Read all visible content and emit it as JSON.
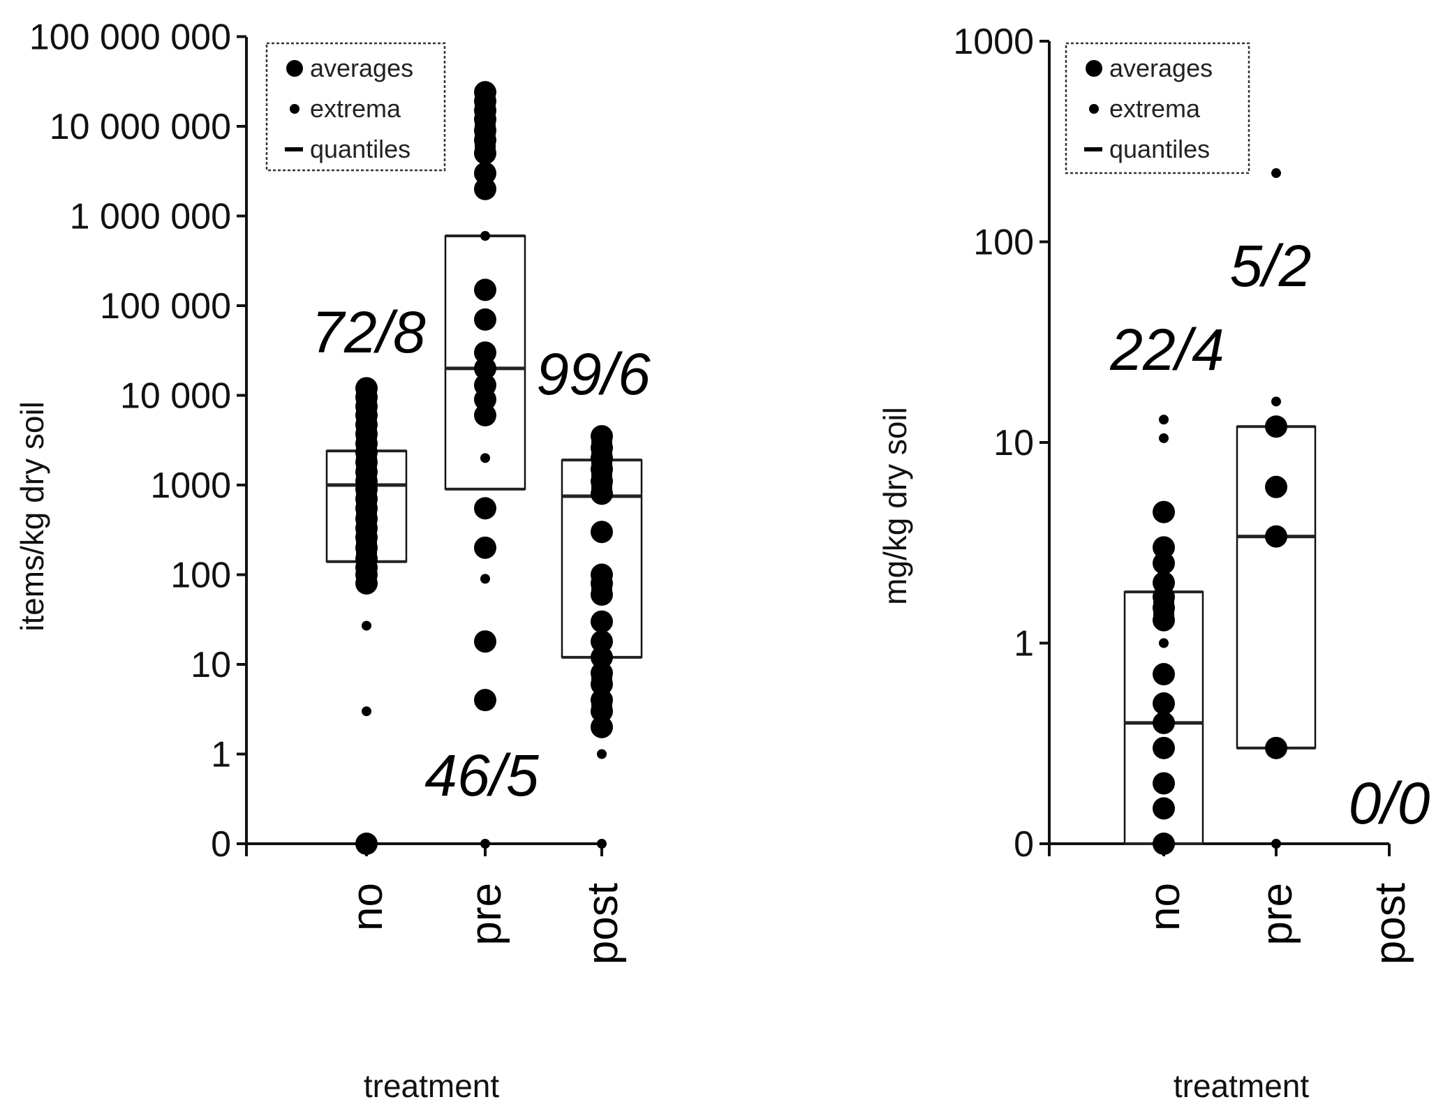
{
  "chart_data": [
    {
      "type": "scatter",
      "subtype": "box-with-points",
      "title": "",
      "xlabel": "treatment",
      "ylabel": "items/kg dry soil",
      "yscale": "log (with 0 placed one decade below 1)",
      "ylim": [
        0,
        100000000
      ],
      "ytick_labels": [
        "0",
        "1",
        "10",
        "100",
        "1000",
        "10 000",
        "100 000",
        "1 000 000",
        "10 000 000",
        "100 000 000"
      ],
      "categories": [
        "no",
        "pre",
        "post"
      ],
      "legend": {
        "position": "top-left",
        "entries": [
          {
            "label": "averages",
            "marker": "large-dot"
          },
          {
            "label": "extrema",
            "marker": "small-dot"
          },
          {
            "label": "quantiles",
            "marker": "dash"
          }
        ]
      },
      "groups": [
        {
          "category": "no",
          "annotation": "72/8",
          "annotation_position": "above",
          "box": {
            "q_low": 140,
            "median": 1000,
            "q_high": 2400
          },
          "averages": [
            0,
            80,
            100,
            120,
            150,
            200,
            260,
            330,
            420,
            550,
            700,
            900,
            1100,
            1400,
            1800,
            2300,
            2900,
            3700,
            4700,
            6000,
            7500,
            9500,
            12000
          ],
          "extrema": [
            3,
            27
          ]
        },
        {
          "category": "pre",
          "annotation": "46/5",
          "annotation_position": "below",
          "box": {
            "q_low": 900,
            "median": 20000,
            "q_high": 600000
          },
          "averages": [
            4,
            18,
            200,
            550,
            6000,
            9000,
            13000,
            20000,
            30000,
            70000,
            150000,
            2000000,
            3000000,
            5000000,
            7000000,
            9000000,
            12000000,
            15000000,
            19000000,
            24000000
          ],
          "extrema": [
            0,
            90,
            2000,
            600000
          ]
        },
        {
          "category": "post",
          "annotation": "99/6",
          "annotation_position": "above",
          "box": {
            "q_low": 12,
            "median": 750,
            "q_high": 1900
          },
          "averages": [
            2,
            3,
            4,
            6,
            8,
            12,
            18,
            30,
            60,
            80,
            100,
            300,
            800,
            1100,
            1500,
            2000,
            2600,
            3500
          ],
          "extrema": [
            0,
            1
          ]
        }
      ]
    },
    {
      "type": "scatter",
      "subtype": "box-with-points",
      "title": "",
      "xlabel": "treatment",
      "ylabel": "mg/kg dry soil",
      "yscale": "log (with 0 placed one decade below 1)",
      "ylim": [
        0,
        1000
      ],
      "ytick_labels": [
        "0",
        "1",
        "10",
        "100",
        "1000"
      ],
      "categories": [
        "no",
        "pre",
        "post"
      ],
      "legend": {
        "position": "top-left",
        "entries": [
          {
            "label": "averages",
            "marker": "large-dot"
          },
          {
            "label": "extrema",
            "marker": "small-dot"
          },
          {
            "label": "quantiles",
            "marker": "dash"
          }
        ]
      },
      "groups": [
        {
          "category": "no",
          "annotation": "22/4",
          "annotation_position": "above",
          "box": {
            "q_low": 0.1,
            "median": 0.4,
            "q_high": 1.8
          },
          "averages": [
            0,
            0.15,
            0.2,
            0.3,
            0.4,
            0.5,
            0.7,
            1.3,
            1.5,
            1.7,
            2.0,
            2.5,
            3.0,
            4.5
          ],
          "extrema": [
            1.0,
            10.5,
            13
          ]
        },
        {
          "category": "pre",
          "annotation": "5/2",
          "annotation_position": "above",
          "box": {
            "q_low": 0.3,
            "median": 3.4,
            "q_high": 12
          },
          "averages": [
            0.3,
            3.4,
            6,
            12
          ],
          "extrema": [
            0,
            16,
            220
          ]
        },
        {
          "category": "post",
          "annotation": "0/0",
          "annotation_position": "above",
          "box": null,
          "averages": [],
          "extrema": []
        }
      ]
    }
  ]
}
